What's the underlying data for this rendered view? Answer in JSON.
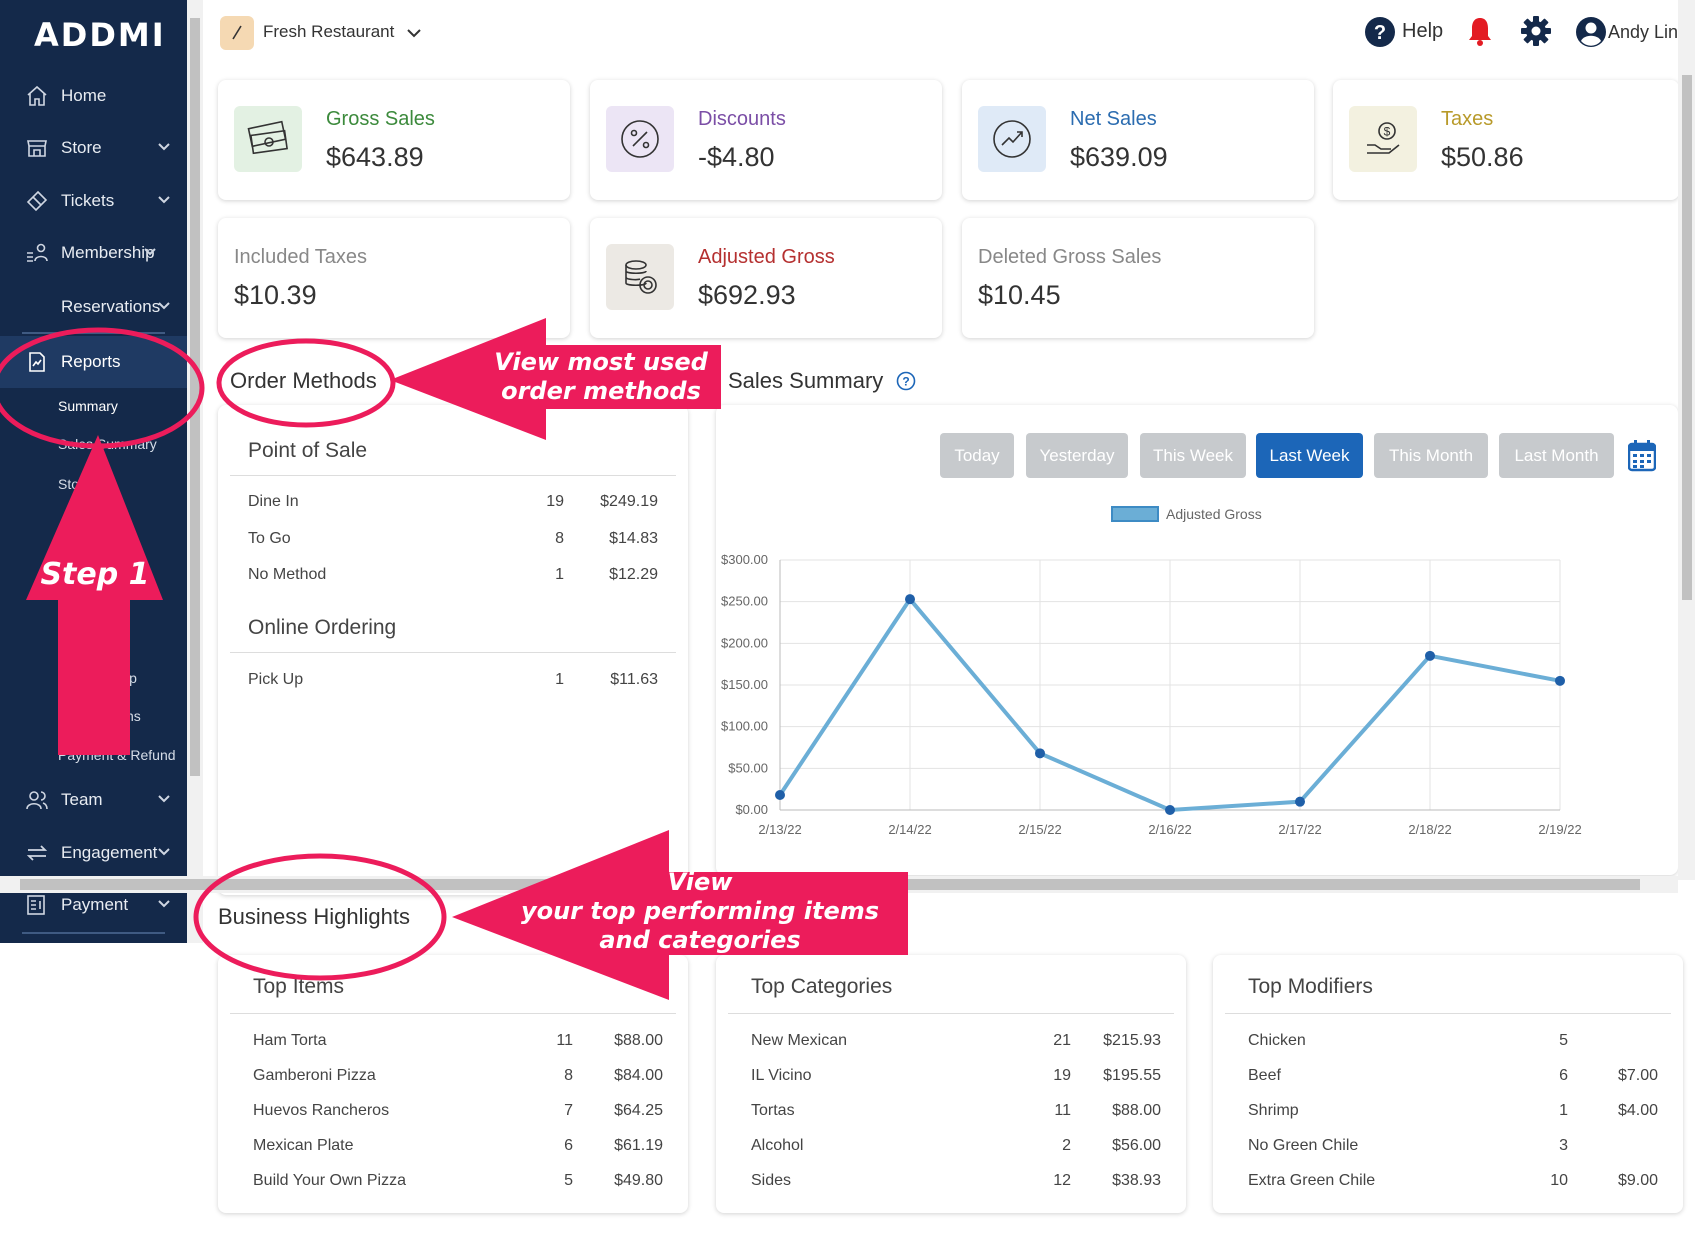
{
  "app": {
    "logo": "ADDMI"
  },
  "header": {
    "store_name": "Fresh Restaurant",
    "help_label": "Help",
    "user_name": "Andy Lin"
  },
  "sidebar": {
    "items": [
      {
        "label": "Home",
        "icon": "home-icon"
      },
      {
        "label": "Store",
        "icon": "store-icon"
      },
      {
        "label": "Tickets",
        "icon": "ticket-icon"
      },
      {
        "label": "Membership",
        "icon": "membership-icon"
      },
      {
        "label": "Reservations"
      },
      {
        "label": "Reports",
        "icon": "report-icon"
      },
      {
        "label": "Team",
        "icon": "team-icon"
      },
      {
        "label": "Engagement",
        "icon": "engagement-icon"
      },
      {
        "label": "Payment",
        "icon": "payment-icon"
      }
    ],
    "sub_items": [
      "Summary",
      "Sales Summary",
      "Sto",
      "ip",
      "ns",
      "Payment & Refund"
    ]
  },
  "stats": [
    {
      "title": "Gross Sales",
      "value": "$643.89",
      "color": "#3c8a3c"
    },
    {
      "title": "Discounts",
      "value": "-$4.80",
      "color": "#7b4ea6"
    },
    {
      "title": "Net Sales",
      "value": "$639.09",
      "color": "#2b6cb0"
    },
    {
      "title": "Taxes",
      "value": "$50.86",
      "color": "#b89a2a"
    },
    {
      "title": "Included Taxes",
      "value": "$10.39",
      "color": "#888888"
    },
    {
      "title": "Adjusted Gross",
      "value": "$692.93",
      "color": "#b53030"
    },
    {
      "title": "Deleted Gross Sales",
      "value": "$10.45",
      "color": "#888888"
    }
  ],
  "order_methods": {
    "title": "Order Methods",
    "groups": [
      {
        "name": "Point of Sale",
        "rows": [
          [
            "Dine In",
            "19",
            "$249.19"
          ],
          [
            "To Go",
            "8",
            "$14.83"
          ],
          [
            "No Method",
            "1",
            "$12.29"
          ]
        ]
      },
      {
        "name": "Online Ordering",
        "rows": [
          [
            "Pick Up",
            "1",
            "$11.63"
          ]
        ]
      }
    ]
  },
  "sales_summary": {
    "title": "Sales Summary",
    "periods": [
      "Today",
      "Yesterday",
      "This Week",
      "Last Week",
      "This Month",
      "Last Month"
    ],
    "active_period": "Last Week"
  },
  "chart_data": {
    "type": "line",
    "x": [
      "2/13/22",
      "2/14/22",
      "2/15/22",
      "2/16/22",
      "2/17/22",
      "2/18/22",
      "2/19/22"
    ],
    "series": [
      {
        "name": "Adjusted Gross",
        "values": [
          18,
          253,
          68,
          0,
          10,
          185,
          155
        ],
        "color": "#6baed6"
      }
    ],
    "ylim": [
      0,
      300
    ],
    "yticks": [
      "$0.00",
      "$50.00",
      "$100.00",
      "$150.00",
      "$200.00",
      "$250.00",
      "$300.00"
    ],
    "grid": true,
    "legend": "top"
  },
  "business_highlights": {
    "title": "Business Highlights",
    "top_items": {
      "title": "Top Items",
      "rows": [
        [
          "Ham Torta",
          "11",
          "$88.00"
        ],
        [
          "Gamberoni Pizza",
          "8",
          "$84.00"
        ],
        [
          "Huevos Rancheros",
          "7",
          "$64.25"
        ],
        [
          "Mexican Plate",
          "6",
          "$61.19"
        ],
        [
          "Build Your Own Pizza",
          "5",
          "$49.80"
        ]
      ]
    },
    "top_categories": {
      "title": "Top Categories",
      "rows": [
        [
          "New Mexican",
          "21",
          "$215.93"
        ],
        [
          "IL Vicino",
          "19",
          "$195.55"
        ],
        [
          "Tortas",
          "11",
          "$88.00"
        ],
        [
          "Alcohol",
          "2",
          "$56.00"
        ],
        [
          "Sides",
          "12",
          "$38.93"
        ]
      ]
    },
    "top_modifiers": {
      "title": "Top Modifiers",
      "rows": [
        [
          "Chicken",
          "5",
          ""
        ],
        [
          "Beef",
          "6",
          "$7.00"
        ],
        [
          "Shrimp",
          "1",
          "$4.00"
        ],
        [
          "No Green Chile",
          "3",
          ""
        ],
        [
          "Extra Green Chile",
          "10",
          "$9.00"
        ]
      ]
    }
  },
  "annotations": {
    "order_methods_callout": [
      "View most used",
      "order methods"
    ],
    "step_label": "Step 1",
    "highlights_callout": [
      "View",
      "your top performing items",
      "and categories"
    ],
    "color": "#ec1c5b"
  }
}
